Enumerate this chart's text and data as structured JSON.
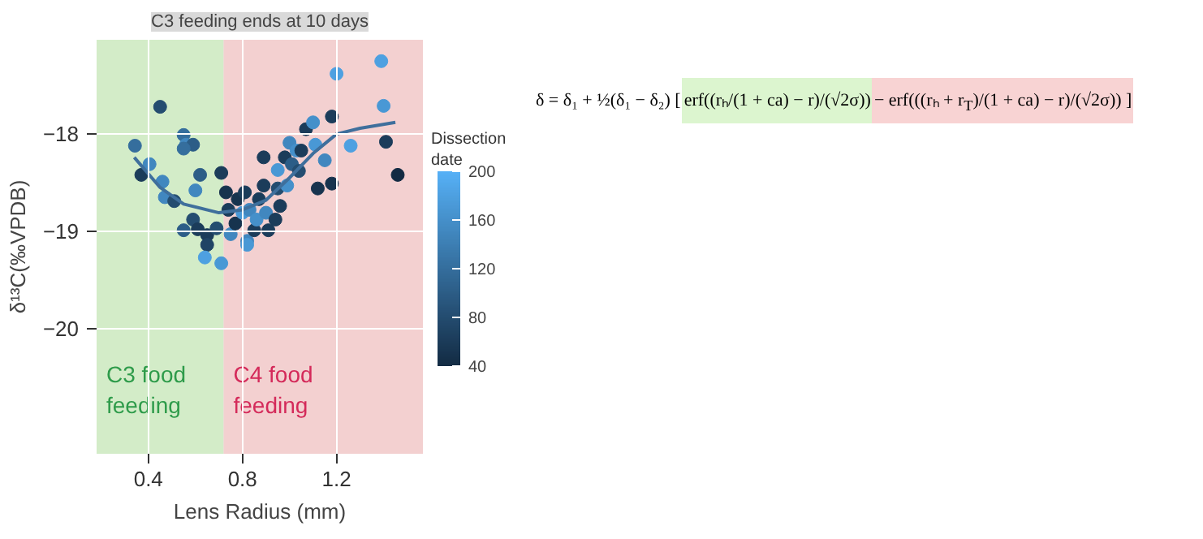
{
  "chart_data": {
    "type": "scatter",
    "title": "C3 feeding ends at 10 days",
    "xlabel": "Lens Radius (mm)",
    "ylabel": "δ¹³C(‰VPDB)",
    "clabel": "Dissection date",
    "xlim": [
      0.18,
      1.567
    ],
    "ylim": [
      -21.29,
      -17.03
    ],
    "xticks": [
      0.4,
      0.8,
      1.2
    ],
    "yticks": [
      -18,
      -19,
      -20
    ],
    "clim": [
      40,
      200
    ],
    "cticks": [
      40,
      80,
      120,
      160,
      200
    ],
    "grid": true,
    "marker": "circle",
    "bands": [
      {
        "axis": "x",
        "from": 0.18,
        "to": 0.72,
        "label": "C3 food\nfeeding",
        "color": "#d3ecc8"
      },
      {
        "axis": "x",
        "from": 0.72,
        "to": 1.567,
        "label": "C4 food\nfeeding",
        "color": "#f3d0d0"
      }
    ],
    "series": [
      {
        "x": [
          0.343,
          0.405,
          0.37,
          0.45,
          0.46,
          0.47,
          0.51,
          0.55,
          0.56,
          0.59,
          0.55,
          0.6,
          0.62,
          0.55,
          0.59,
          0.61,
          0.65,
          0.65,
          0.64,
          0.69,
          0.71,
          0.71,
          0.73,
          0.74,
          0.75,
          0.77,
          0.78,
          0.8,
          0.81,
          0.83,
          0.82,
          0.82,
          0.85,
          0.86,
          0.87,
          0.89,
          0.89,
          0.9,
          0.91,
          0.94,
          0.95,
          0.95,
          0.96,
          0.98,
          0.99,
          1.0,
          1.01,
          1.03,
          1.04,
          1.05,
          1.07,
          1.1,
          1.11,
          1.12,
          1.15,
          1.18,
          1.18,
          1.2,
          1.26,
          1.39,
          1.4,
          1.41,
          1.46
        ],
        "values": [
          -18.12,
          -18.31,
          -18.42,
          -17.72,
          -18.49,
          -18.65,
          -18.69,
          -18.01,
          -18.11,
          -18.11,
          -18.15,
          -18.58,
          -18.42,
          -18.99,
          -18.88,
          -18.98,
          -19.04,
          -19.14,
          -19.27,
          -18.97,
          -19.33,
          -18.4,
          -18.6,
          -18.78,
          -19.03,
          -18.92,
          -18.67,
          -18.81,
          -18.6,
          -18.78,
          -19.1,
          -19.14,
          -18.99,
          -18.88,
          -18.67,
          -18.53,
          -18.24,
          -18.81,
          -18.99,
          -18.88,
          -18.37,
          -18.56,
          -18.74,
          -18.24,
          -18.53,
          -18.09,
          -18.31,
          -18.17,
          -18.38,
          -18.17,
          -17.95,
          -17.88,
          -18.11,
          -18.56,
          -18.27,
          -17.82,
          -18.51,
          -17.38,
          -18.12,
          -17.25,
          -17.71,
          -18.08,
          -18.42
        ],
        "colors": [
          "#356e9d",
          "#4187bf",
          "#1b3c5a",
          "#244d70",
          "#4187bf",
          "#4187bf",
          "#244d70",
          "#356e9d",
          "#4187bf",
          "#2c5d87",
          "#356e9d",
          "#4187bf",
          "#2c5d87",
          "#2c5d87",
          "#244d70",
          "#1b3c5a",
          "#1b3c5a",
          "#204465",
          "#4ea0e1",
          "#244d70",
          "#4998d5",
          "#1b3c5a",
          "#17334e",
          "#1b3c5a",
          "#4187bf",
          "#17334e",
          "#17334e",
          "#4998d5",
          "#1b3c5a",
          "#4187bf",
          "#4187bf",
          "#4998d5",
          "#1b3c5a",
          "#4590ca",
          "#1b3c5a",
          "#1b3c5a",
          "#1b3c5a",
          "#4187bf",
          "#1b3c5a",
          "#1b3c5a",
          "#4998d5",
          "#244d70",
          "#1b3c5a",
          "#1b3c5a",
          "#4590ca",
          "#4187bf",
          "#2c5d87",
          "#4590ca",
          "#244d70",
          "#1b3c5a",
          "#1b3c5a",
          "#4590ca",
          "#4998d5",
          "#17334e",
          "#4187bf",
          "#1b3c5a",
          "#17334e",
          "#4ea0e1",
          "#4ea0e1",
          "#4ea0e1",
          "#4998d5",
          "#1b3c5a",
          "#132b43"
        ],
        "cvalues": [
          120,
          150,
          60,
          80,
          150,
          150,
          80,
          120,
          150,
          100,
          120,
          150,
          100,
          100,
          80,
          60,
          60,
          70,
          180,
          80,
          170,
          60,
          50,
          60,
          150,
          50,
          50,
          170,
          60,
          150,
          150,
          170,
          60,
          160,
          60,
          60,
          60,
          150,
          60,
          60,
          170,
          80,
          60,
          60,
          160,
          150,
          100,
          160,
          80,
          60,
          60,
          160,
          170,
          50,
          150,
          60,
          50,
          180,
          180,
          180,
          170,
          60,
          40
        ]
      },
      {
        "type": "line",
        "marker": "none",
        "color": "#3f6f9c",
        "x": [
          0.34,
          0.45,
          0.55,
          0.7,
          0.8,
          0.9,
          1.0,
          1.1,
          1.2,
          1.3,
          1.45
        ],
        "values": [
          -18.24,
          -18.55,
          -18.72,
          -18.81,
          -18.78,
          -18.68,
          -18.45,
          -18.2,
          -18.0,
          -17.94,
          -17.88
        ]
      }
    ],
    "annotations": [
      "δ = δ₁ + ½(δ₁ − δ₂) [",
      "erf((rₕ/(1 + ca) − r)/(√2σ))",
      "− erf(((rₕ + r$_{T}$)/(1 + ca) − r)/(√2σ)) ]"
    ]
  }
}
